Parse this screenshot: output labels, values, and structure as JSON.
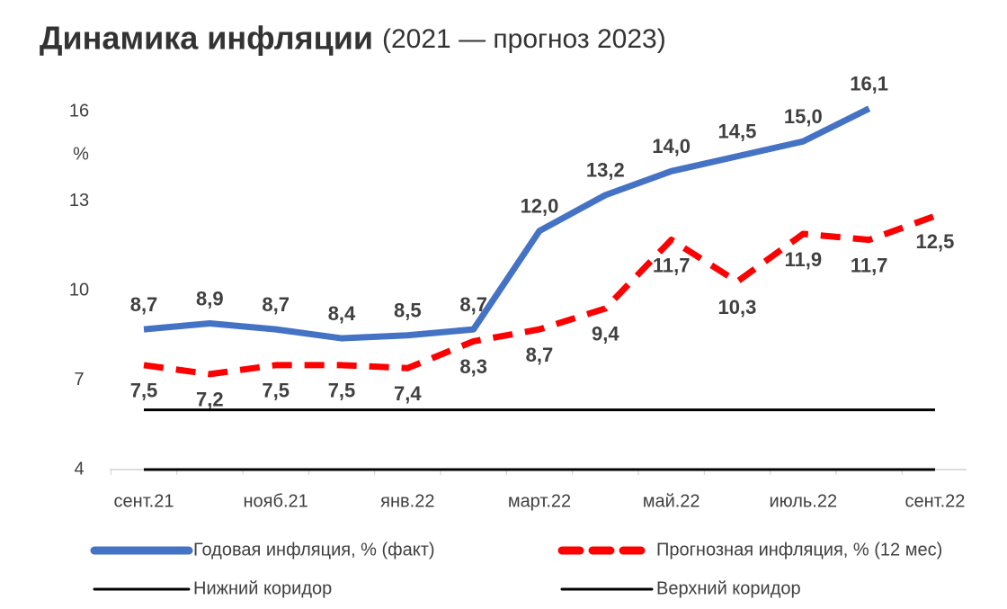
{
  "chart_data": {
    "type": "line",
    "title": "Динамика инфляции",
    "subtitle": "(2021 — прогноз 2023)",
    "y_label": "%",
    "categories": [
      "сент.21",
      null,
      "нояб.21",
      null,
      "янв.22",
      null,
      "март.22",
      null,
      "май.22",
      null,
      "июль.22",
      null,
      "сент.22"
    ],
    "ylim": [
      4,
      16
    ],
    "yticks": [
      4,
      7,
      10,
      13,
      16
    ],
    "series": [
      {
        "name": "Годовая инфляция, % (факт)",
        "color": "#4472c4",
        "dash": false,
        "values": [
          8.7,
          8.9,
          8.7,
          8.4,
          8.5,
          8.7,
          12.0,
          13.2,
          14.0,
          14.5,
          15.0,
          16.1,
          null
        ],
        "value_labels": [
          "8,7",
          "8,9",
          "8,7",
          "8,4",
          "8,5",
          "8,7",
          "12,0",
          "13,2",
          "14,0",
          "14,5",
          "15,0",
          "16,1",
          null
        ]
      },
      {
        "name": "Прогнозная инфляция, % (12 мес)",
        "color": "#ff0000",
        "dash": true,
        "values": [
          7.5,
          7.2,
          7.5,
          7.5,
          7.4,
          8.3,
          8.7,
          9.4,
          11.7,
          10.3,
          11.9,
          11.7,
          12.5
        ],
        "value_labels": [
          "7,5",
          "7,2",
          "7,5",
          "7,5",
          "7,4",
          "8,3",
          "8,7",
          "9,4",
          "11,7",
          "10,3",
          "11,9",
          "11,7",
          "12,5"
        ]
      },
      {
        "name": "Нижний коридор",
        "color": "#000000",
        "dash": false,
        "values": [
          4,
          4,
          4,
          4,
          4,
          4,
          4,
          4,
          4,
          4,
          4,
          4,
          4
        ]
      },
      {
        "name": "Верхний коридор",
        "color": "#000000",
        "dash": false,
        "values": [
          6,
          6,
          6,
          6,
          6,
          6,
          6,
          6,
          6,
          6,
          6,
          6,
          6
        ]
      }
    ]
  }
}
